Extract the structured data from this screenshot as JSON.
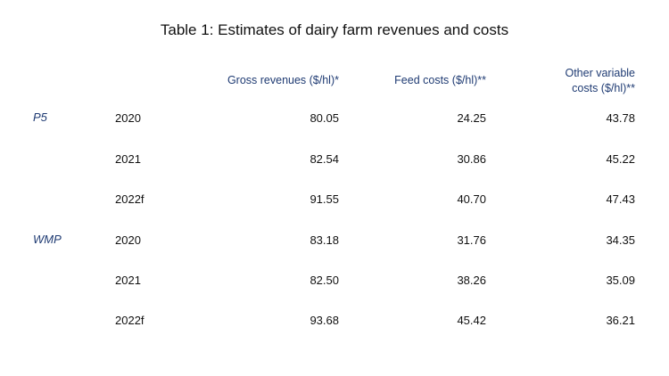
{
  "title": "Table 1: Estimates of dairy farm revenues and costs",
  "columns": {
    "gross": "Gross revenues ($/hl)*",
    "feed": "Feed costs ($/hl)**",
    "other_line1": "Other variable",
    "other_line2": "costs ($/hl)**"
  },
  "groups": [
    {
      "name": "P5",
      "rows": [
        {
          "year": "2020",
          "gross": "80.05",
          "feed": "24.25",
          "other": "43.78"
        },
        {
          "year": "2021",
          "gross": "82.54",
          "feed": "30.86",
          "other": "45.22"
        },
        {
          "year": "2022f",
          "gross": "91.55",
          "feed": "40.70",
          "other": "47.43"
        }
      ]
    },
    {
      "name": "WMP",
      "rows": [
        {
          "year": "2020",
          "gross": "83.18",
          "feed": "31.76",
          "other": "34.35"
        },
        {
          "year": "2021",
          "gross": "82.50",
          "feed": "38.26",
          "other": "35.09"
        },
        {
          "year": "2022f",
          "gross": "93.68",
          "feed": "45.42",
          "other": "36.21"
        }
      ]
    }
  ]
}
